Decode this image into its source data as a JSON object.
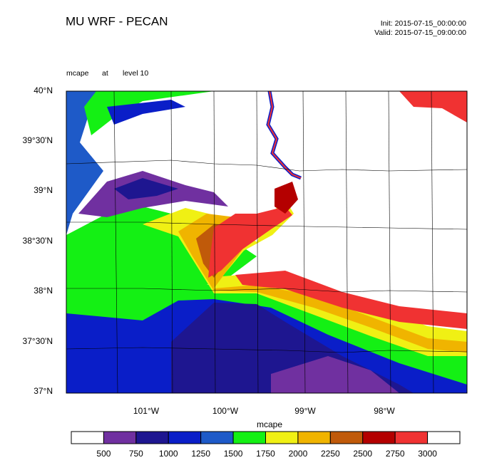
{
  "header": {
    "title": "MU WRF - PECAN",
    "init": "Init: 2015-07-15_00:00:00",
    "valid": "Valid: 2015-07-15_09:00:00",
    "field": "mcape",
    "at": "at",
    "level": "level 10"
  },
  "map": {
    "lat_labels": [
      "40°N",
      "39°30'N",
      "39°N",
      "38°30'N",
      "38°N",
      "37°30'N",
      "37°N"
    ],
    "lon_labels": [
      "101°W",
      "100°W",
      "99°W",
      "98°W"
    ]
  },
  "colorbar": {
    "title": "mcape",
    "levels": [
      500,
      750,
      1000,
      1250,
      1500,
      1750,
      2000,
      2250,
      2500,
      2750,
      3000
    ],
    "colors": [
      "#ffffff",
      "#7030a0",
      "#1e1690",
      "#0a1ec8",
      "#1e5ac8",
      "#14f014",
      "#f0f014",
      "#f0b400",
      "#c05a0a",
      "#b40000",
      "#f03232",
      "#ffffff"
    ]
  }
}
